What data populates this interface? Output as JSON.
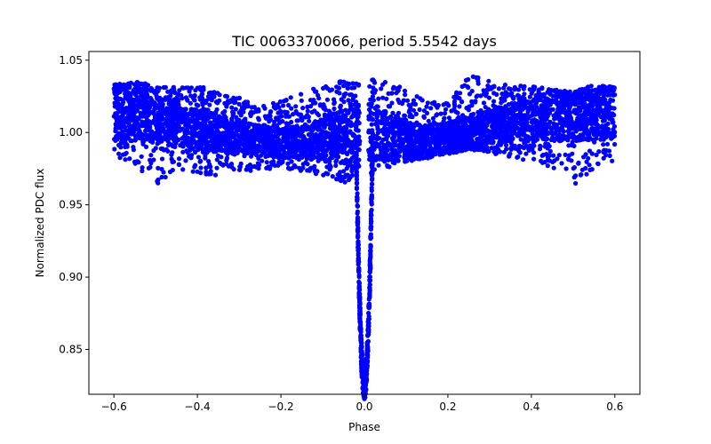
{
  "chart_data": {
    "type": "scatter",
    "title": "TIC 0063370066, period 5.5542 days",
    "xlabel": "Phase",
    "ylabel": "Normalized PDC flux",
    "xlim": [
      -0.66,
      0.66
    ],
    "ylim": [
      0.819,
      1.056
    ],
    "xticks": [
      -0.6,
      -0.4,
      -0.2,
      0.0,
      0.2,
      0.4,
      0.6
    ],
    "xtick_labels": [
      "−0.6",
      "−0.4",
      "−0.2",
      "0.0",
      "0.2",
      "0.4",
      "0.6"
    ],
    "yticks": [
      0.85,
      0.9,
      0.95,
      1.0,
      1.05
    ],
    "ytick_labels": [
      "0.85",
      "0.90",
      "0.95",
      "1.00",
      "1.05"
    ],
    "grid": false,
    "marker_color": "#0000ff",
    "series": [
      {
        "envelope_samples": {
          "x": [
            -0.6,
            -0.55,
            -0.5,
            -0.45,
            -0.4,
            -0.35,
            -0.3,
            -0.25,
            -0.2,
            -0.15,
            -0.1,
            -0.05,
            -0.02,
            0.02,
            0.05,
            0.1,
            0.15,
            0.2,
            0.25,
            0.3,
            0.35,
            0.4,
            0.45,
            0.5,
            0.55,
            0.6
          ],
          "upper": [
            1.033,
            1.035,
            1.033,
            1.032,
            1.032,
            1.029,
            1.024,
            1.018,
            1.022,
            1.027,
            1.033,
            1.036,
            1.034,
            1.037,
            1.035,
            1.03,
            1.023,
            1.02,
            1.04,
            1.036,
            1.033,
            1.032,
            1.03,
            1.028,
            1.033,
            1.032
          ],
          "lower": [
            0.98,
            0.978,
            0.963,
            0.975,
            0.972,
            0.97,
            0.972,
            0.974,
            0.976,
            0.973,
            0.97,
            0.965,
            0.97,
            0.972,
            0.975,
            0.98,
            0.982,
            0.985,
            0.988,
            0.986,
            0.983,
            0.98,
            0.976,
            0.963,
            0.975,
            0.973
          ],
          "band_upper": [
            1.03,
            1.028,
            1.026,
            1.02,
            1.016,
            1.012,
            1.008,
            1.005,
            1.003,
            1.005,
            1.01,
            1.018,
            1.02,
            1.02,
            1.015,
            1.008,
            1.005,
            1.008,
            1.012,
            1.016,
            1.02,
            1.022,
            1.024,
            1.026,
            1.028,
            1.03
          ],
          "band_lower": [
            0.995,
            0.994,
            0.993,
            0.99,
            0.988,
            0.986,
            0.985,
            0.984,
            0.983,
            0.982,
            0.98,
            0.978,
            0.978,
            0.98,
            0.982,
            0.984,
            0.986,
            0.988,
            0.99,
            0.992,
            0.993,
            0.994,
            0.994,
            0.994,
            0.995,
            0.995
          ]
        },
        "transit": {
          "center_phase": 0.0,
          "depth_min_flux": 0.825,
          "half_width_phase": 0.02
        }
      }
    ]
  }
}
